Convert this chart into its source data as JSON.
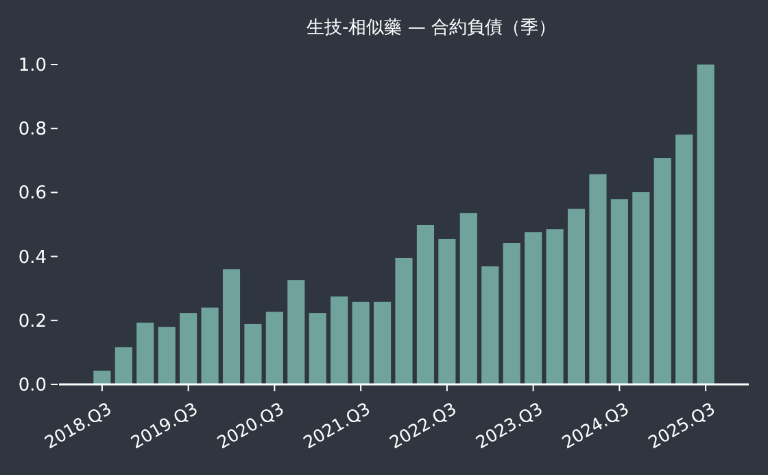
{
  "chart_data": {
    "type": "bar",
    "title": "生技-相似藥 — 合約負債（季）",
    "categories": [
      "2018.Q3",
      null,
      null,
      null,
      "2019.Q3",
      null,
      null,
      null,
      "2020.Q3",
      null,
      null,
      null,
      "2021.Q3",
      null,
      null,
      null,
      "2022.Q3",
      null,
      null,
      null,
      "2023.Q3",
      null,
      null,
      null,
      "2024.Q3",
      null,
      null,
      null,
      "2025.Q3"
    ],
    "values": [
      0.043,
      0.116,
      0.193,
      0.18,
      0.223,
      0.24,
      0.36,
      0.189,
      0.227,
      0.326,
      0.223,
      0.275,
      0.258,
      0.258,
      0.395,
      0.498,
      0.455,
      0.536,
      0.369,
      0.442,
      0.476,
      0.485,
      0.549,
      0.657,
      0.579,
      0.601,
      0.708,
      0.781,
      1.0
    ],
    "color": "#6fa39c",
    "ylim": [
      0,
      1.0
    ],
    "yticks": [
      {
        "value": 0,
        "label": "0.0"
      },
      {
        "value": 0.2,
        "label": "0.2"
      },
      {
        "value": 0.4,
        "label": "0.4"
      },
      {
        "value": 0.6,
        "label": "0.6"
      },
      {
        "value": 0.8,
        "label": "0.8"
      },
      {
        "value": 1.0,
        "label": "1.0"
      }
    ],
    "grid": false
  }
}
